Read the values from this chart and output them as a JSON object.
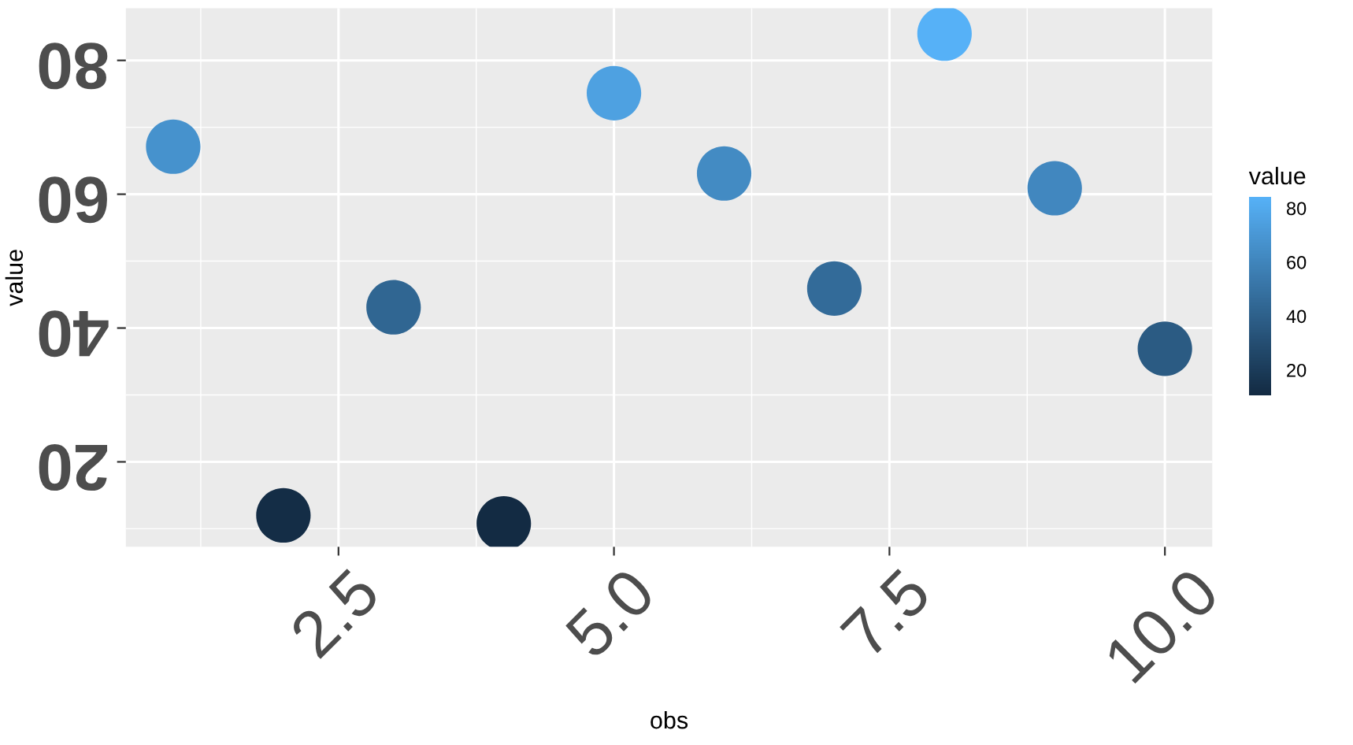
{
  "chart_data": {
    "type": "scatter",
    "xlabel": "obs",
    "ylabel": "value",
    "clabel": "value",
    "x": [
      1,
      2,
      3,
      4,
      5,
      6,
      7,
      8,
      9,
      10
    ],
    "values": [
      67.1,
      12.0,
      43.1,
      10.8,
      75.1,
      63.1,
      45.9,
      84.0,
      60.9,
      36.9
    ],
    "cvalues": [
      67.1,
      12.0,
      43.1,
      10.8,
      75.1,
      63.1,
      45.9,
      84.0,
      60.9,
      36.9
    ],
    "clim": [
      10.8,
      84.0
    ],
    "cticks": [
      20,
      40,
      60,
      80
    ],
    "xlim": [
      0.57,
      10.43
    ],
    "xticks": [
      {
        "value": 2.5,
        "label": "2.5"
      },
      {
        "value": 5,
        "label": "5.0"
      },
      {
        "value": 7.5,
        "label": "7.5"
      },
      {
        "value": 10,
        "label": "10.0"
      }
    ],
    "ylim": [
      7.3,
      87.8
    ],
    "yticks": [
      20,
      40,
      60,
      80
    ],
    "grid": true,
    "marker": "circle"
  }
}
